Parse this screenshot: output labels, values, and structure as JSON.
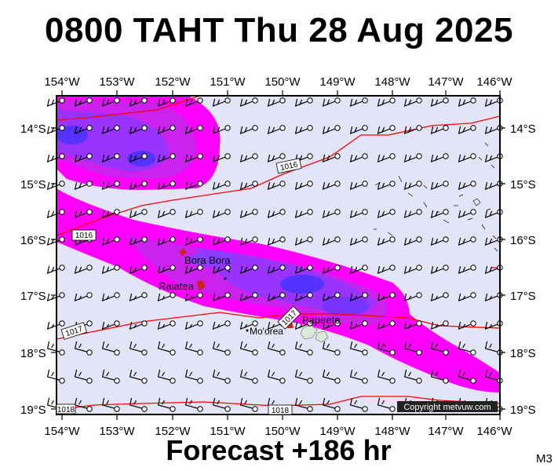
{
  "title": "0800 TAHT Thu 28 Aug 2025",
  "footer": "Forecast +186 hr",
  "product_code": "M3",
  "copyright": "Copyright metvuw.com",
  "lon_labels": [
    "154°W",
    "153°W",
    "152°W",
    "151°W",
    "150°W",
    "149°W",
    "148°W",
    "147°W",
    "146°W"
  ],
  "lat_labels": [
    "14°S",
    "15°S",
    "16°S",
    "17°S",
    "18°S",
    "19°S"
  ],
  "place_labels": {
    "bora_bora": "Bora Bora",
    "raiatea": "Raiatea",
    "moorea": "Mo'orea",
    "papeete": "Papeete"
  },
  "isobar_labels": [
    "1016",
    "1016",
    "1017",
    "1017",
    "1018",
    "1018"
  ],
  "colors": {
    "ocean": "#e4e4f8",
    "rain_light": "#ff00ff",
    "rain_mid": "#cc22ee",
    "rain_heavy": "#9933ff",
    "rain_max": "#5533ff",
    "isobar": "#ff0000",
    "island": "#d8ead8"
  }
}
